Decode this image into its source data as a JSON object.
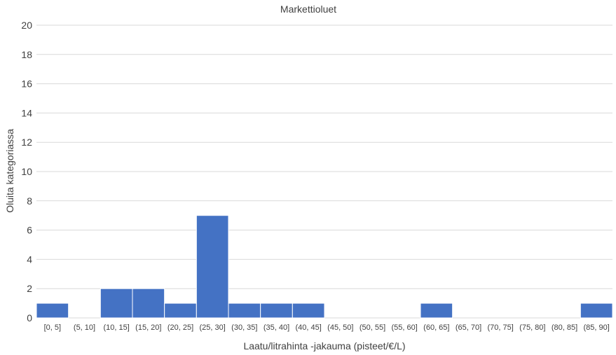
{
  "chart_data": {
    "type": "bar",
    "title": "Markettioluet",
    "xlabel": "Laatu/litrahinta -jakauma (pisteet/€/L)",
    "ylabel": "Oluita kategoriassa",
    "ylim": [
      0,
      20
    ],
    "yticks": [
      0,
      2,
      4,
      6,
      8,
      10,
      12,
      14,
      16,
      18,
      20
    ],
    "grid": true,
    "legend": "none",
    "categories": [
      "[0, 5]",
      "(5, 10]",
      "(10, 15]",
      "(15, 20]",
      "(20, 25]",
      "(25, 30]",
      "(30, 35]",
      "(35, 40]",
      "(40, 45]",
      "(45, 50]",
      "(50, 55]",
      "(55, 60]",
      "(60, 65]",
      "(65, 70]",
      "(70, 75]",
      "(75, 80]",
      "(80, 85]",
      "(85, 90]"
    ],
    "values": [
      1,
      0,
      2,
      2,
      1,
      7,
      1,
      1,
      1,
      0,
      0,
      0,
      1,
      0,
      0,
      0,
      0,
      1
    ],
    "colors": {
      "bar": "#4472c4",
      "grid": "#d9d9d9",
      "text": "#404040"
    }
  }
}
